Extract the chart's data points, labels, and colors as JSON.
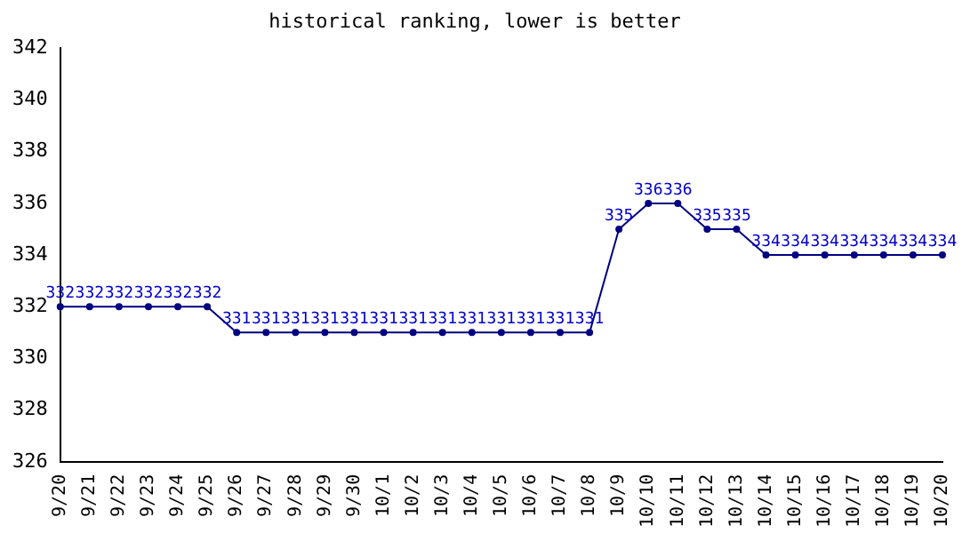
{
  "chart_data": {
    "type": "line",
    "title": "historical ranking, lower is better",
    "categories": [
      "9/20",
      "9/21",
      "9/22",
      "9/23",
      "9/24",
      "9/25",
      "9/26",
      "9/27",
      "9/28",
      "9/29",
      "9/30",
      "10/1",
      "10/2",
      "10/3",
      "10/4",
      "10/5",
      "10/6",
      "10/7",
      "10/8",
      "10/9",
      "10/10",
      "10/11",
      "10/12",
      "10/13",
      "10/14",
      "10/15",
      "10/16",
      "10/17",
      "10/18",
      "10/19",
      "10/20"
    ],
    "series": [
      {
        "color": "#000080",
        "values": [
          332,
          332,
          332,
          332,
          332,
          332,
          331,
          331,
          331,
          331,
          331,
          331,
          331,
          331,
          331,
          331,
          331,
          331,
          331,
          335,
          336,
          336,
          335,
          335,
          334,
          334,
          334,
          334,
          334,
          334,
          334
        ]
      }
    ],
    "ylim": [
      326,
      342
    ],
    "yticks": [
      326,
      328,
      330,
      332,
      334,
      336,
      338,
      340,
      342
    ],
    "grid": false,
    "legend": false,
    "marker": "circle",
    "line_style": "solid",
    "data_labels": true
  }
}
